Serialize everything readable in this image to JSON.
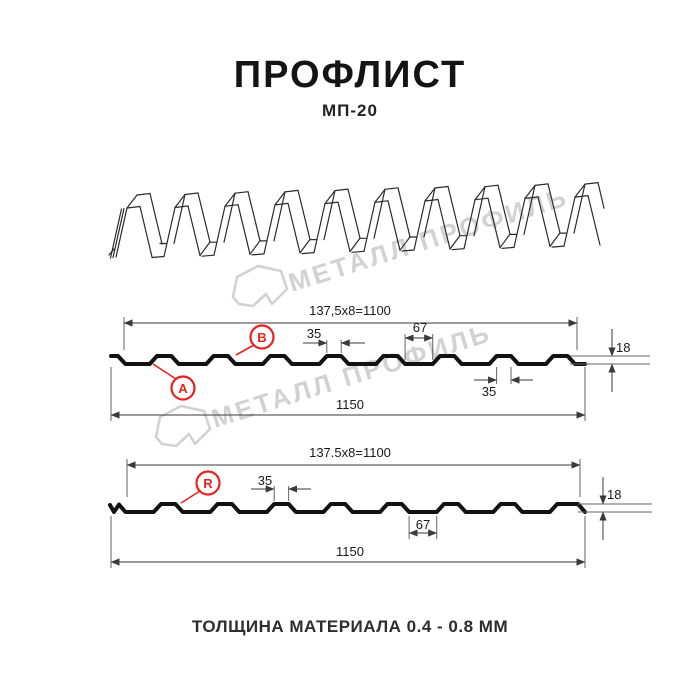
{
  "header": {
    "title": "ПРОФЛИСТ",
    "subtitle": "МП-20"
  },
  "footer": {
    "text": "ТОЛЩИНА МАТЕРИАЛА 0.4 - 0.8 ММ"
  },
  "watermark": {
    "text": "МЕТАЛЛ ПРОФИЛЬ",
    "color": "#d2d2d2"
  },
  "colors": {
    "line": "#121212",
    "dim": "#3a3a3a",
    "ext": "#666666",
    "red": "#e8231f"
  },
  "front_view": {
    "coverage_width_label": "137,5x8=1100",
    "rib_top_label": "35",
    "valley_label": "67",
    "height_label": "18",
    "rib_bottom_label": "35",
    "overall_width_label": "1150",
    "point_a": "A",
    "point_b": "B"
  },
  "back_view": {
    "coverage_width_label": "137.5x8=1100",
    "rib_top_label": "35",
    "valley_label": "67",
    "height_label": "18",
    "overall_width_label": "1150",
    "radius_label": "R"
  }
}
